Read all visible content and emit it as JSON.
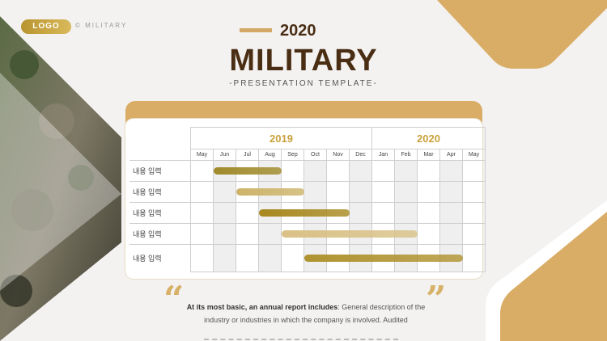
{
  "header": {
    "logo": "LOGO",
    "copyright": "© MILITARY",
    "year": "2020",
    "title": "MILITARY",
    "subtitle": "-PRESENTATION TEMPLATE-"
  },
  "gantt": {
    "years": [
      {
        "label": "2019",
        "span": 8
      },
      {
        "label": "2020",
        "span": 5
      }
    ],
    "months": [
      "May",
      "Jun",
      "Jul",
      "Aug",
      "Sep",
      "Oct",
      "Nov",
      "Dec",
      "Jan",
      "Feb",
      "Mar",
      "Apr",
      "May"
    ],
    "rows": [
      {
        "label": "내용 입력",
        "start": 1,
        "end": 4,
        "color": "#a08a2a"
      },
      {
        "label": "내용 입력",
        "start": 2,
        "end": 5,
        "color": "#cdb46a"
      },
      {
        "label": "내용 입력",
        "start": 3,
        "end": 7,
        "color": "#a8891f"
      },
      {
        "label": "내용 입력",
        "start": 4,
        "end": 10,
        "color": "#d9c186"
      },
      {
        "label": "내용 입력",
        "start": 5,
        "end": 12,
        "color": "#b09330"
      }
    ]
  },
  "footer": {
    "quote_open": "“",
    "quote_close": "”",
    "desc_bold": "At its most basic, an annual report includes",
    "desc_rest": ": General description of the industry or industries in which the company is involved. Audited"
  },
  "colors": {
    "accent": "#d9ad66",
    "brown": "#4a2e14",
    "gold": "#c9a23c"
  }
}
